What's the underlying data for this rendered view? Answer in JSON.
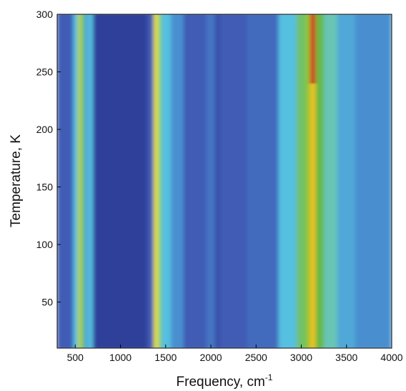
{
  "chart_data": {
    "type": "heatmap",
    "xlabel": "Frequency, cm",
    "xlabel_sup": "-1",
    "ylabel": "Temperature, K",
    "xlim": [
      300,
      4000
    ],
    "xticks": [
      500,
      1000,
      1500,
      2000,
      2500,
      3000,
      3500,
      4000
    ],
    "ylim": [
      10,
      300
    ],
    "yticks": [
      50,
      100,
      150,
      200,
      250,
      300
    ],
    "bins": [
      300,
      480,
      530,
      570,
      600,
      650,
      700,
      1300,
      1370,
      1420,
      1460,
      1560,
      1700,
      1950,
      2050,
      2100,
      2400,
      2750,
      2950,
      3050,
      3100,
      3160,
      3250,
      3400,
      3600,
      4000
    ],
    "y_bins": [
      10,
      240,
      300
    ],
    "z": [
      [
        0.25,
        0.45,
        0.75,
        0.6,
        0.4,
        0.45,
        0.15,
        0.25,
        0.8,
        0.55,
        0.45,
        0.35,
        0.25,
        0.3,
        0.2,
        0.25,
        0.28,
        0.45,
        0.6,
        0.7,
        0.85,
        0.65,
        0.5,
        0.4,
        0.35
      ],
      [
        0.25,
        0.45,
        0.75,
        0.6,
        0.4,
        0.45,
        0.15,
        0.25,
        0.8,
        0.55,
        0.45,
        0.35,
        0.25,
        0.3,
        0.2,
        0.25,
        0.28,
        0.45,
        0.6,
        0.7,
        1.0,
        0.65,
        0.5,
        0.4,
        0.35
      ]
    ],
    "colormap": {
      "stops": [
        0.15,
        0.25,
        0.35,
        0.45,
        0.55,
        0.65,
        0.8,
        0.9,
        1.0
      ],
      "colors": [
        "#2e3f9a",
        "#3f5bb5",
        "#4a8fd0",
        "#55c0e0",
        "#7cc98a",
        "#66b944",
        "#e6e01a",
        "#f4a21a",
        "#d42a1a"
      ]
    }
  }
}
